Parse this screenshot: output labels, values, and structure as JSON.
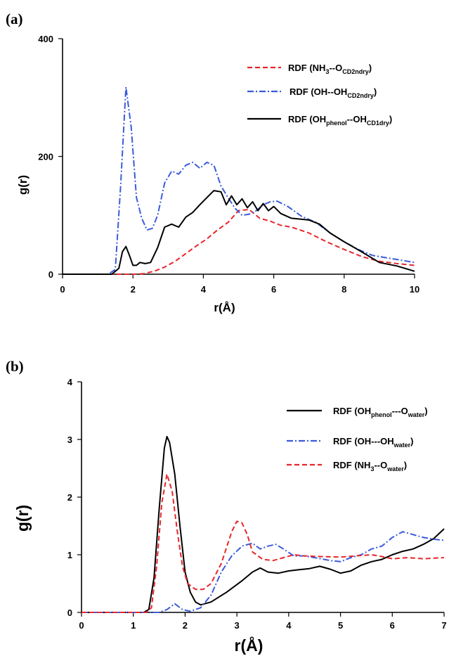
{
  "chart_data": [
    {
      "panel": "(a)",
      "type": "line",
      "xlabel": "r(Å)",
      "ylabel": "g(r)",
      "xlim": [
        0,
        10
      ],
      "ylim": [
        0,
        400
      ],
      "xticks": [
        "0",
        "2",
        "4",
        "6",
        "8",
        "10"
      ],
      "yticks": [
        "0",
        "200",
        "400"
      ],
      "grid": false,
      "legend_position": "top-right",
      "series": [
        {
          "name": "RDF (NH3--OCD2ndry)",
          "label_main": "RDF (NH",
          "label_sub1": "3",
          "label_mid": "--O",
          "label_sub2": "CD2ndry",
          "label_end": ")",
          "color": "#e8262b",
          "dash": "dashed",
          "x": [
            0,
            2.0,
            2.3,
            2.6,
            2.9,
            3.2,
            3.5,
            3.8,
            4.1,
            4.4,
            4.7,
            5.0,
            5.3,
            5.6,
            5.9,
            6.2,
            6.5,
            7.0,
            7.5,
            8.0,
            8.5,
            9.0,
            9.5,
            10.0
          ],
          "y": [
            0,
            0,
            1,
            5,
            12,
            22,
            35,
            48,
            60,
            75,
            88,
            108,
            110,
            95,
            90,
            83,
            80,
            70,
            55,
            42,
            30,
            22,
            18,
            15
          ]
        },
        {
          "name": "RDF (OH--OHCD2ndry)",
          "label_main": "RDF (OH--OH",
          "label_sub1": "CD2ndry",
          "label_mid": "",
          "label_sub2": "",
          "label_end": ")",
          "color": "#3b5bdb",
          "dash": "dashdot",
          "x": [
            0,
            1.3,
            1.5,
            1.65,
            1.8,
            1.95,
            2.1,
            2.25,
            2.4,
            2.55,
            2.7,
            2.9,
            3.1,
            3.3,
            3.5,
            3.7,
            3.9,
            4.1,
            4.3,
            4.5,
            4.7,
            4.9,
            5.1,
            5.3,
            5.5,
            5.7,
            5.9,
            6.1,
            6.4,
            6.8,
            7.2,
            7.6,
            8.0,
            8.4,
            8.8,
            9.2,
            9.6,
            10.0
          ],
          "y": [
            0,
            0,
            8,
            150,
            318,
            250,
            130,
            95,
            75,
            78,
            100,
            155,
            175,
            170,
            185,
            190,
            180,
            190,
            185,
            150,
            130,
            112,
            100,
            102,
            108,
            118,
            123,
            124,
            115,
            98,
            88,
            70,
            55,
            42,
            32,
            28,
            24,
            20
          ]
        },
        {
          "name": "RDF (OHphenol--OHCD1dry)",
          "label_main": "RDF (OH",
          "label_sub1": "phenol",
          "label_mid": "--OH",
          "label_sub2": "CD1dry",
          "label_end": ")",
          "color": "#000000",
          "dash": "solid",
          "x": [
            0,
            1.4,
            1.6,
            1.7,
            1.8,
            1.9,
            2.0,
            2.1,
            2.2,
            2.35,
            2.5,
            2.7,
            2.9,
            3.1,
            3.3,
            3.5,
            3.7,
            3.9,
            4.1,
            4.3,
            4.5,
            4.65,
            4.8,
            4.95,
            5.1,
            5.25,
            5.4,
            5.55,
            5.7,
            5.85,
            6.0,
            6.2,
            6.5,
            7.0,
            7.3,
            7.6,
            8.0,
            8.5,
            9.0,
            9.5,
            10.0
          ],
          "y": [
            0,
            0,
            10,
            38,
            47,
            32,
            15,
            15,
            20,
            18,
            20,
            45,
            80,
            85,
            80,
            97,
            105,
            118,
            130,
            142,
            140,
            118,
            133,
            118,
            128,
            113,
            123,
            108,
            120,
            108,
            115,
            103,
            95,
            92,
            85,
            70,
            55,
            38,
            20,
            14,
            5
          ]
        }
      ]
    },
    {
      "panel": "(b)",
      "type": "line",
      "xlabel": "r(Å)",
      "ylabel": "g(r)",
      "xlim": [
        0,
        7
      ],
      "ylim": [
        0,
        4
      ],
      "xticks": [
        "0",
        "1",
        "2",
        "3",
        "4",
        "5",
        "6",
        "7"
      ],
      "yticks": [
        "0",
        "1",
        "2",
        "3",
        "4"
      ],
      "grid": false,
      "legend_position": "top-right",
      "series": [
        {
          "name": "RDF (OHphenol---Owater)",
          "label_main": "RDF (OH",
          "label_sub1": "phenol",
          "label_mid": "---O",
          "label_sub2": "water",
          "label_end": ")",
          "color": "#000000",
          "dash": "solid",
          "x": [
            0,
            1.2,
            1.3,
            1.4,
            1.5,
            1.6,
            1.65,
            1.7,
            1.8,
            1.9,
            2.0,
            2.1,
            2.2,
            2.3,
            2.5,
            2.8,
            3.1,
            3.3,
            3.45,
            3.6,
            3.8,
            4.0,
            4.2,
            4.4,
            4.6,
            4.8,
            5.0,
            5.2,
            5.4,
            5.6,
            5.8,
            6.0,
            6.2,
            6.4,
            6.6,
            6.8,
            7.0
          ],
          "y": [
            0,
            0,
            0.05,
            0.6,
            1.8,
            2.85,
            3.05,
            2.95,
            2.4,
            1.5,
            0.7,
            0.35,
            0.18,
            0.13,
            0.18,
            0.35,
            0.55,
            0.7,
            0.77,
            0.7,
            0.68,
            0.72,
            0.74,
            0.76,
            0.8,
            0.75,
            0.68,
            0.72,
            0.82,
            0.88,
            0.92,
            1.0,
            1.06,
            1.1,
            1.18,
            1.28,
            1.45
          ]
        },
        {
          "name": "RDF (OH---OHwater)",
          "label_main": "RDF (OH---OH",
          "label_sub1": "water",
          "label_mid": "",
          "label_sub2": "",
          "label_end": ")",
          "color": "#3b5bdb",
          "dash": "dashdot",
          "x": [
            0,
            1.5,
            1.65,
            1.8,
            1.95,
            2.1,
            2.3,
            2.5,
            2.7,
            2.9,
            3.1,
            3.3,
            3.45,
            3.6,
            3.75,
            3.9,
            4.1,
            4.3,
            4.5,
            4.8,
            5.0,
            5.2,
            5.4,
            5.6,
            5.8,
            6.0,
            6.2,
            6.4,
            6.6,
            6.8,
            7.0
          ],
          "y": [
            0,
            0,
            0.05,
            0.15,
            0.05,
            0.02,
            0.08,
            0.3,
            0.7,
            0.98,
            1.15,
            1.2,
            1.1,
            1.15,
            1.18,
            1.1,
            0.98,
            0.98,
            0.95,
            0.9,
            0.88,
            0.95,
            1.0,
            1.1,
            1.15,
            1.3,
            1.4,
            1.35,
            1.3,
            1.27,
            1.25
          ]
        },
        {
          "name": "RDF (NH3--Owater)",
          "label_main": "RDF (NH",
          "label_sub1": "3",
          "label_mid": "--O",
          "label_sub2": "water",
          "label_end": ")",
          "color": "#e8262b",
          "dash": "dashed",
          "x": [
            0,
            1.25,
            1.35,
            1.45,
            1.55,
            1.65,
            1.75,
            1.85,
            1.95,
            2.05,
            2.2,
            2.35,
            2.5,
            2.7,
            2.9,
            3.0,
            3.1,
            3.2,
            3.3,
            3.5,
            3.7,
            3.9,
            4.1,
            4.3,
            4.6,
            5.0,
            5.3,
            5.6,
            5.8,
            6.0,
            6.3,
            6.6,
            7.0
          ],
          "y": [
            0,
            0,
            0.08,
            0.8,
            1.9,
            2.4,
            2.1,
            1.4,
            0.8,
            0.5,
            0.4,
            0.4,
            0.5,
            0.85,
            1.4,
            1.58,
            1.55,
            1.35,
            1.05,
            0.92,
            0.9,
            0.95,
            1.0,
            0.98,
            0.97,
            0.96,
            0.98,
            1.0,
            0.97,
            0.93,
            0.95,
            0.93,
            0.95
          ]
        }
      ]
    }
  ]
}
